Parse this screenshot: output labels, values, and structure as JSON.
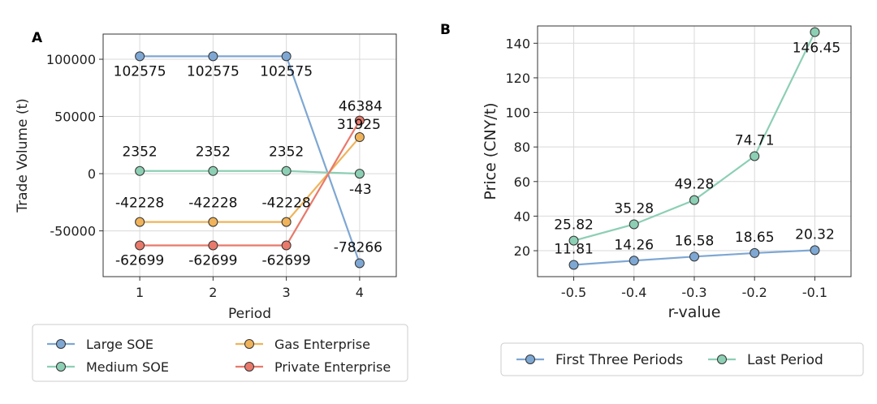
{
  "chart_data": [
    {
      "panel": "A",
      "type": "line",
      "xlabel": "Period",
      "ylabel": "Trade Volume (t)",
      "x": [
        1,
        2,
        3,
        4
      ],
      "xlim": [
        0.5,
        4.5
      ],
      "ylim": [
        -90000,
        122000
      ],
      "xticks": [
        "1",
        "2",
        "3",
        "4"
      ],
      "yticks": [
        {
          "value": -50000,
          "label": "-50000"
        },
        {
          "value": 0,
          "label": "0"
        },
        {
          "value": 50000,
          "label": "50000"
        },
        {
          "value": 100000,
          "label": "100000"
        }
      ],
      "grid": true,
      "legend_placement": "below",
      "series": [
        {
          "name": "Large SOE",
          "color": "#7ea7d3",
          "values": [
            102575,
            102575,
            102575,
            -78266
          ],
          "labels": [
            "102575",
            "102575",
            "102575",
            "-78266"
          ]
        },
        {
          "name": "Medium SOE",
          "color": "#8ccfb4",
          "values": [
            2352,
            2352,
            2352,
            -43
          ],
          "labels": [
            "2352",
            "2352",
            "2352",
            "-43"
          ]
        },
        {
          "name": "Gas Enterprise",
          "color": "#f0b35a",
          "values": [
            -42228,
            -42228,
            -42228,
            31925
          ],
          "labels": [
            "-42228",
            "-42228",
            "-42228",
            "31925"
          ]
        },
        {
          "name": "Private Enterprise",
          "color": "#e8796b",
          "values": [
            -62699,
            -62699,
            -62699,
            46384
          ],
          "labels": [
            "-62699",
            "-62699",
            "-62699",
            "46384"
          ]
        }
      ]
    },
    {
      "panel": "B",
      "type": "line",
      "xlabel": "r-value",
      "ylabel": "Price (CNY/t)",
      "x": [
        -0.5,
        -0.4,
        -0.3,
        -0.2,
        -0.1
      ],
      "xlim": [
        -0.56,
        -0.04
      ],
      "ylim": [
        5,
        150
      ],
      "xticks": [
        "-0.5",
        "-0.4",
        "-0.3",
        "-0.2",
        "-0.1"
      ],
      "yticks": [
        {
          "value": 20,
          "label": "20"
        },
        {
          "value": 40,
          "label": "40"
        },
        {
          "value": 60,
          "label": "60"
        },
        {
          "value": 80,
          "label": "80"
        },
        {
          "value": 100,
          "label": "100"
        },
        {
          "value": 120,
          "label": "120"
        },
        {
          "value": 140,
          "label": "140"
        }
      ],
      "grid": true,
      "legend_placement": "below",
      "series": [
        {
          "name": "First Three Periods",
          "color": "#7ea7d3",
          "values": [
            11.81,
            14.26,
            16.58,
            18.65,
            20.32
          ],
          "labels": [
            "11.81",
            "14.26",
            "16.58",
            "18.65",
            "20.32"
          ]
        },
        {
          "name": "Last Period",
          "color": "#8ccfb4",
          "values": [
            25.82,
            35.28,
            49.28,
            74.71,
            146.45
          ],
          "labels": [
            "25.82",
            "35.28",
            "49.28",
            "74.71",
            "146.45"
          ]
        }
      ]
    }
  ]
}
